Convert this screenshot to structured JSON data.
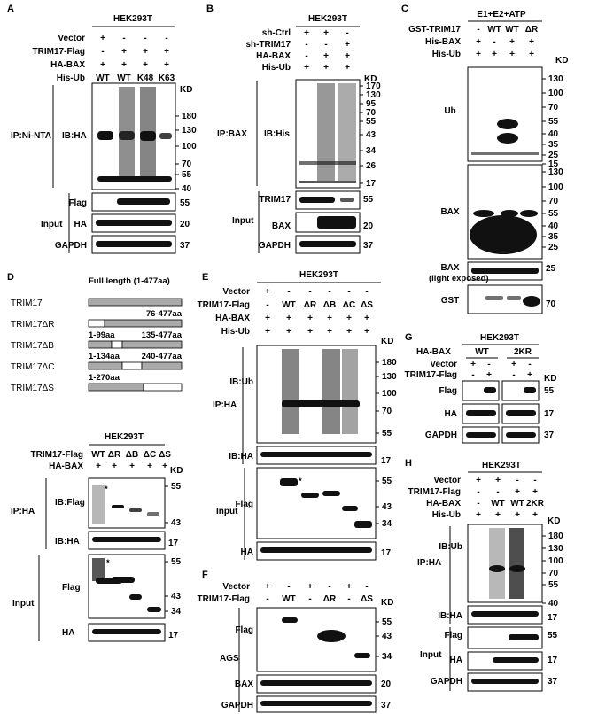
{
  "A": {
    "letter": "A",
    "cell": "HEK293T",
    "rows": [
      {
        "label": "Vector",
        "values": [
          "+",
          "-",
          "-",
          "-"
        ]
      },
      {
        "label": "TRIM17-Flag",
        "values": [
          "-",
          "+",
          "+",
          "+"
        ]
      },
      {
        "label": "HA-BAX",
        "values": [
          "+",
          "+",
          "+",
          "+"
        ]
      },
      {
        "label": "His-Ub",
        "values": [
          "WT",
          "WT",
          "K48",
          "K63"
        ]
      }
    ],
    "kd": "KD",
    "ip": "IP:Ni-NTA",
    "ib": "IB:HA",
    "markers": [
      "180",
      "130",
      "100",
      "70",
      "55",
      "40"
    ],
    "input": "Input",
    "input_rows": [
      {
        "label": "Flag",
        "kd": "55"
      },
      {
        "label": "HA",
        "kd": "20"
      },
      {
        "label": "GAPDH",
        "kd": "37"
      }
    ]
  },
  "B": {
    "letter": "B",
    "cell": "HEK293T",
    "rows": [
      {
        "label": "sh-Ctrl",
        "values": [
          "+",
          "+",
          "-"
        ]
      },
      {
        "label": "sh-TRIM17",
        "values": [
          "-",
          "-",
          "+"
        ]
      },
      {
        "label": "HA-BAX",
        "values": [
          "-",
          "+",
          "+"
        ]
      },
      {
        "label": "His-Ub",
        "values": [
          "+",
          "+",
          "+"
        ]
      }
    ],
    "kd": "KD",
    "ip": "IP:BAX",
    "ib": "IB:His",
    "markers": [
      "170",
      "130",
      "95",
      "70",
      "55",
      "43",
      "34",
      "26",
      "17"
    ],
    "input": "Input",
    "input_rows": [
      {
        "label": "TRIM17",
        "kd": "55"
      },
      {
        "label": "BAX",
        "kd": "20"
      },
      {
        "label": "GAPDH",
        "kd": "37"
      }
    ]
  },
  "C": {
    "letter": "C",
    "header": "E1+E2+ATP",
    "rows": [
      {
        "label": "GST-TRIM17",
        "values": [
          "-",
          "WT",
          "WT",
          "ΔR"
        ]
      },
      {
        "label": "His-BAX",
        "values": [
          "+",
          "-",
          "+",
          "+"
        ]
      },
      {
        "label": "His-Ub",
        "values": [
          "+",
          "+",
          "+",
          "+"
        ]
      }
    ],
    "kd": "KD",
    "ub": "Ub",
    "ub_markers": [
      "130",
      "100",
      "70",
      "55",
      "40",
      "35",
      "25",
      "15"
    ],
    "bax": "BAX",
    "bax_markers": [
      "130",
      "100",
      "70",
      "55",
      "40",
      "35",
      "25"
    ],
    "bax_light": "BAX",
    "bax_light_sub": "(light exposed)",
    "bax_light_kd": "25",
    "gst": "GST",
    "gst_kd": "70"
  },
  "D": {
    "letter": "D",
    "full_length": "Full length (1-477aa)",
    "constructs": [
      {
        "label": "TRIM17",
        "left": "",
        "right": ""
      },
      {
        "label": "TRIM17ΔR",
        "left": "",
        "right": "76-477aa"
      },
      {
        "label": "TRIM17ΔB",
        "left": "1-99aa",
        "right": "135-477aa"
      },
      {
        "label": "TRIM17ΔC",
        "left": "1-134aa",
        "right": "240-477aa"
      },
      {
        "label": "TRIM17ΔS",
        "left": "1-270aa",
        "right": ""
      }
    ],
    "cell": "HEK293T",
    "rows": [
      {
        "label": "TRIM17-Flag",
        "values": [
          "WT",
          "ΔR",
          "ΔB",
          "ΔC",
          "ΔS"
        ]
      },
      {
        "label": "HA-BAX",
        "values": [
          "+",
          "+",
          "+",
          "+",
          "+"
        ]
      }
    ],
    "kd": "KD",
    "ip": "IP:HA",
    "ib_flag": "IB:Flag",
    "ib_ha": "IB:HA",
    "ib_flag_markers": [
      "55",
      "43"
    ],
    "ib_ha_kd": "17",
    "star": "*",
    "input": "Input",
    "flag": "Flag",
    "flag_markers": [
      "55",
      "43",
      "34"
    ],
    "ha": "HA",
    "ha_kd": "17"
  },
  "E": {
    "letter": "E",
    "cell": "HEK293T",
    "rows": [
      {
        "label": "Vector",
        "values": [
          "+",
          "-",
          "-",
          "-",
          "-",
          "-"
        ]
      },
      {
        "label": "TRIM17-Flag",
        "values": [
          "-",
          "WT",
          "ΔR",
          "ΔB",
          "ΔC",
          "ΔS"
        ]
      },
      {
        "label": "HA-BAX",
        "values": [
          "+",
          "+",
          "+",
          "+",
          "+",
          "+"
        ]
      },
      {
        "label": "His-Ub",
        "values": [
          "+",
          "+",
          "+",
          "+",
          "+",
          "+"
        ]
      }
    ],
    "kd": "KD",
    "ip": "IP:HA",
    "ib_ub": "IB:Ub",
    "ub_markers": [
      "180",
      "130",
      "100",
      "70",
      "55"
    ],
    "ib_ha": "IB:HA",
    "ib_ha_kd": "17",
    "star": "*",
    "input": "Input",
    "flag": "Flag",
    "flag_markers": [
      "55",
      "43",
      "34"
    ],
    "ha": "HA",
    "ha_kd": "17"
  },
  "F": {
    "letter": "F",
    "rows": [
      {
        "label": "Vector",
        "values": [
          "+",
          "-",
          "+",
          "-",
          "+",
          "-"
        ]
      },
      {
        "label": "TRIM17-Flag",
        "values": [
          "-",
          "WT",
          "-",
          "ΔR",
          "-",
          "ΔS"
        ]
      }
    ],
    "kd": "KD",
    "cell": "AGS",
    "flag": "Flag",
    "flag_markers": [
      "55",
      "43",
      "34"
    ],
    "bax": "BAX",
    "bax_kd": "20",
    "gapdh": "GAPDH",
    "gapdh_kd": "37"
  },
  "G": {
    "letter": "G",
    "cell": "HEK293T",
    "groups": [
      "WT",
      "2KR"
    ],
    "group_label": "HA-BAX",
    "rows": [
      {
        "label": "Vector",
        "values": [
          "+",
          "-",
          "+",
          "-"
        ]
      },
      {
        "label": "TRIM17-Flag",
        "values": [
          "-",
          "+",
          "-",
          "+"
        ]
      }
    ],
    "kd": "KD",
    "blots": [
      {
        "label": "Flag",
        "kd": "55"
      },
      {
        "label": "HA",
        "kd": "17"
      },
      {
        "label": "GAPDH",
        "kd": "37"
      }
    ]
  },
  "H": {
    "letter": "H",
    "cell": "HEK293T",
    "rows": [
      {
        "label": "Vector",
        "values": [
          "+",
          "+",
          "-",
          "-"
        ]
      },
      {
        "label": "TRIM17-Flag",
        "values": [
          "-",
          "-",
          "+",
          "+"
        ]
      },
      {
        "label": "HA-BAX",
        "values": [
          "-",
          "WT",
          "WT",
          "2KR"
        ]
      },
      {
        "label": "His-Ub",
        "values": [
          "+",
          "+",
          "+",
          "+"
        ]
      }
    ],
    "kd": "KD",
    "ip": "IP:HA",
    "ib_ub": "IB:Ub",
    "ub_markers": [
      "180",
      "130",
      "100",
      "70",
      "55",
      "40"
    ],
    "ib_ha": "IB:HA",
    "ib_ha_kd": "17",
    "input": "Input",
    "input_rows": [
      {
        "label": "Flag",
        "kd": "55"
      },
      {
        "label": "HA",
        "kd": "17"
      },
      {
        "label": "GAPDH",
        "kd": "37"
      }
    ]
  }
}
